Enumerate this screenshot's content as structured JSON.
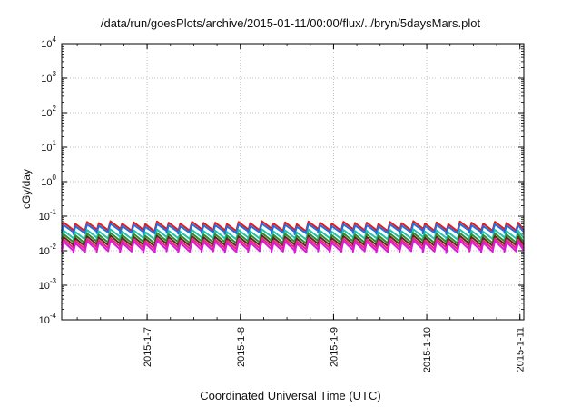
{
  "chart_data": {
    "type": "line",
    "title": "/data/run/goesPlots/archive/2015-01-11/00:00/flux/../bryn/5daysMars.plot",
    "xlabel": "Coordinated Universal Time (UTC)",
    "ylabel": "cGy/day",
    "yscale": "log",
    "ylim": [
      0.0001,
      10000
    ],
    "xlim": [
      "2015-01-06T02:00",
      "2015-01-11T01:00"
    ],
    "y_ticks": [
      {
        "base": "10",
        "exp": "-4"
      },
      {
        "base": "10",
        "exp": "-3"
      },
      {
        "base": "10",
        "exp": "-2"
      },
      {
        "base": "10",
        "exp": "-1"
      },
      {
        "base": "10",
        "exp": "0"
      },
      {
        "base": "10",
        "exp": "1"
      },
      {
        "base": "10",
        "exp": "2"
      },
      {
        "base": "10",
        "exp": "3"
      },
      {
        "base": "10",
        "exp": "4"
      }
    ],
    "x_ticks": [
      "2015-1-7",
      "2015-1-8",
      "2015-1-9",
      "2015-1-10",
      "2015-1-11"
    ],
    "grid": true,
    "legend": "none",
    "series": [
      {
        "color": "#e41a1c",
        "peak": 0.065,
        "trough": 0.038
      },
      {
        "color": "#1f6fe0",
        "peak": 0.055,
        "trough": 0.033
      },
      {
        "color": "#21c2a8",
        "peak": 0.038,
        "trough": 0.022
      },
      {
        "color": "#2e8b2e",
        "peak": 0.03,
        "trough": 0.017
      },
      {
        "color": "#5a2a1a",
        "peak": 0.025,
        "trough": 0.014
      },
      {
        "color": "#e6267d",
        "peak": 0.021,
        "trough": 0.0115
      },
      {
        "color": "#d91ad9",
        "peak": 0.018,
        "trough": 0.0095
      }
    ],
    "cycle_hours": 3,
    "cycles": 39
  }
}
